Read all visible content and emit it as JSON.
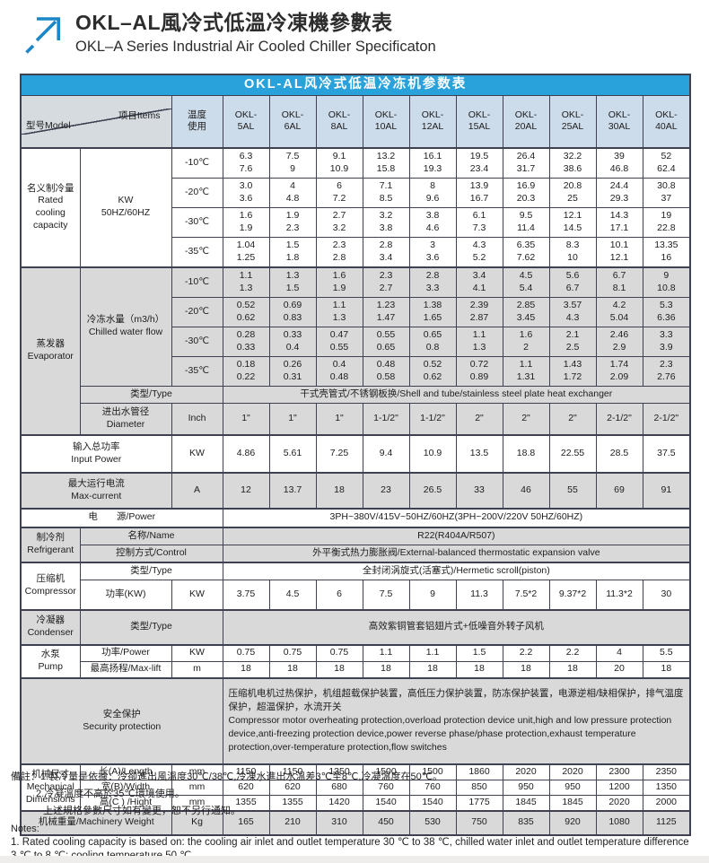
{
  "colors": {
    "caption_bar": "#29a1da",
    "header_row": "#cddcea",
    "gray_row": "#d9d9d9",
    "border": "#3e4152",
    "arrow_blue": "#1d86c8"
  },
  "header": {
    "title_zh": "OKL–AL風冷式低溫冷凍機參數表",
    "title_en": "OKL–A Series Industrial Air Cooled Chiller Specificaton"
  },
  "table": {
    "caption": "OKL-AL风冷式低温冷冻机参数表",
    "corner": {
      "model": "型号Model",
      "items": "项目Items"
    },
    "temp_header": "温度\n使用",
    "models": [
      "OKL-\n5AL",
      "OKL-\n6AL",
      "OKL-\n8AL",
      "OKL-\n10AL",
      "OKL-\n12AL",
      "OKL-\n15AL",
      "OKL-\n20AL",
      "OKL-\n25AL",
      "OKL-\n30AL",
      "OKL-\n40AL"
    ],
    "cooling": {
      "label": "名义制冷量\nRated\ncooling\ncapacity",
      "unit": "KW\n50HZ/60HZ",
      "rows": [
        {
          "temp": "-10℃",
          "values": [
            "6.3\n7.6",
            "7.5\n9",
            "9.1\n10.9",
            "13.2\n15.8",
            "16.1\n19.3",
            "19.5\n23.4",
            "26.4\n31.7",
            "32.2\n38.6",
            "39\n46.8",
            "52\n62.4"
          ]
        },
        {
          "temp": "-20℃",
          "values": [
            "3.0\n3.6",
            "4\n4.8",
            "6\n7.2",
            "7.1\n8.5",
            "8\n9.6",
            "13.9\n16.7",
            "16.9\n20.3",
            "20.8\n25",
            "24.4\n29.3",
            "30.8\n37"
          ]
        },
        {
          "temp": "-30℃",
          "values": [
            "1.6\n1.9",
            "1.9\n2.3",
            "2.7\n3.2",
            "3.2\n3.8",
            "3.8\n4.6",
            "6.1\n7.3",
            "9.5\n11.4",
            "12.1\n14.5",
            "14.3\n17.1",
            "19\n22.8"
          ]
        },
        {
          "temp": "-35℃",
          "values": [
            "1.04\n1.25",
            "1.5\n1.8",
            "2.3\n2.8",
            "2.8\n3.4",
            "3\n3.6",
            "4.3\n5.2",
            "6.35\n7.62",
            "8.3\n10",
            "10.1\n12.1",
            "13.35\n16"
          ]
        }
      ]
    },
    "evaporator": {
      "label": "蒸发器\nEvaporator",
      "flow_label": "冷冻水量（m3/h）\nChilled water flow",
      "rows": [
        {
          "temp": "-10℃",
          "values": [
            "1.1\n1.3",
            "1.3\n1.5",
            "1.6\n1.9",
            "2.3\n2.7",
            "2.8\n3.3",
            "3.4\n4.1",
            "4.5\n5.4",
            "5.6\n6.7",
            "6.7\n8.1",
            "9\n10.8"
          ]
        },
        {
          "temp": "-20℃",
          "values": [
            "0.52\n0.62",
            "0.69\n0.83",
            "1.1\n1.3",
            "1.23\n1.47",
            "1.38\n1.65",
            "2.39\n2.87",
            "2.85\n3.45",
            "3.57\n4.3",
            "4.2\n5.04",
            "5.3\n6.36"
          ]
        },
        {
          "temp": "-30℃",
          "values": [
            "0.28\n0.33",
            "0.33\n0.4",
            "0.47\n0.55",
            "0.55\n0.65",
            "0.65\n0.8",
            "1.1\n1.3",
            "1.6\n2",
            "2.1\n2.5",
            "2.46\n2.9",
            "3.3\n3.9"
          ]
        },
        {
          "temp": "-35℃",
          "values": [
            "0.18\n0.22",
            "0.26\n0.31",
            "0.4\n0.48",
            "0.48\n0.58",
            "0.52\n0.62",
            "0.72\n0.89",
            "1.1\n1.31",
            "1.43\n1.72",
            "1.74\n2.09",
            "2.3\n2.76"
          ]
        }
      ],
      "type_label": "类型/Type",
      "type_value": "干式壳管式/不锈钢板换/Shell and tube/stainless steel plate heat exchanger",
      "diameter_label": "进出水管径\nDiameter",
      "diameter_unit": "Inch",
      "diameter_values": [
        "1\"",
        "1\"",
        "1\"",
        "1-1/2\"",
        "1-1/2\"",
        "2\"",
        "2\"",
        "2\"",
        "2-1/2\"",
        "2-1/2\""
      ]
    },
    "input_power": {
      "label": "输入总功率\nInput Power",
      "unit": "KW",
      "values": [
        "4.86",
        "5.61",
        "7.25",
        "9.4",
        "10.9",
        "13.5",
        "18.8",
        "22.55",
        "28.5",
        "37.5"
      ]
    },
    "max_current": {
      "label": "最大运行电流\nMax-current",
      "unit": "A",
      "values": [
        "12",
        "13.7",
        "18",
        "23",
        "26.5",
        "33",
        "46",
        "55",
        "69",
        "91"
      ]
    },
    "power_supply": {
      "label": "电　　源/Power",
      "value": "3PH~380V/415V~50HZ/60HZ(3PH~200V/220V  50HZ/60HZ)"
    },
    "refrigerant": {
      "label": "制冷剂\nRefrigerant",
      "name_label": "名称/Name",
      "name_value": "R22(R404A/R507)",
      "control_label": "控制方式/Control",
      "control_value": "外平衡式热力膨胀阀/External-balanced thermostatic expansion valve"
    },
    "compressor": {
      "label": "压缩机\nCompressor",
      "type_label": "类型/Type",
      "type_value": "全封闭涡旋式(活塞式)/Hermetic scroll(piston)",
      "power_label": "功率(KW)",
      "power_unit": "KW",
      "power_values": [
        "3.75",
        "4.5",
        "6",
        "7.5",
        "9",
        "11.3",
        "7.5*2",
        "9.37*2",
        "11.3*2",
        "30"
      ]
    },
    "condenser": {
      "label": "冷凝器\nCondenser",
      "type_label": "类型/Type",
      "type_value": "高效紫铜管套铝翅片式+低噪音外转子风机"
    },
    "pump": {
      "label": "水泵\nPump",
      "power_label": "功率/Power",
      "power_unit": "KW",
      "power_values": [
        "0.75",
        "0.75",
        "0.75",
        "1.1",
        "1.1",
        "1.5",
        "2.2",
        "2.2",
        "4",
        "5.5"
      ],
      "lift_label": "最高扬程/Max-lift",
      "lift_unit": "m",
      "lift_values": [
        "18",
        "18",
        "18",
        "18",
        "18",
        "18",
        "18",
        "18",
        "20",
        "18"
      ]
    },
    "security": {
      "label": "安全保护\nSecurity protection",
      "value_zh": "压缩机电机过热保护，机组超载保护装置，高低压力保护装置，防冻保护装置，电源逆相/缺相保护，排气温度保护，超温保护，水流开关",
      "value_en": "Compressor motor overheating protection,overload protection device unit,high and low pressure protection device,anti-freezing protection device,power reverse phase/phase protection,exhaust temperature protection,over-temperature protection,flow switches"
    },
    "mechanical": {
      "label": "机械尺寸\nMechanical\nDimensions",
      "length_label": "长(A)/Length",
      "length_unit": "mm",
      "length_values": [
        "1150",
        "1150",
        "1350",
        "1500",
        "1500",
        "1860",
        "2020",
        "2020",
        "2300",
        "2350"
      ],
      "width_label": "宽(B)/Width",
      "width_unit": "mm",
      "width_values": [
        "620",
        "620",
        "680",
        "760",
        "760",
        "850",
        "950",
        "950",
        "1200",
        "1350"
      ],
      "height_label": "高(C ) /Hight",
      "height_unit": "mm",
      "height_values": [
        "1355",
        "1355",
        "1420",
        "1540",
        "1540",
        "1775",
        "1845",
        "1845",
        "2020",
        "2000"
      ]
    },
    "weight": {
      "label": "机械重量/Machinery Weight",
      "unit": "Kg",
      "values": [
        "165",
        "210",
        "310",
        "450",
        "530",
        "750",
        "835",
        "920",
        "1080",
        "1125"
      ]
    }
  },
  "notes": {
    "zh1": "備註：1.製冷量是依據：冷卻進出風溫度30℃/38℃,冷凍水進出水溫差3℃至8℃,冷凝溫度在50℃。",
    "zh2": "2.冷凝溫度不高於35℃環境使用。",
    "zh3": "上述規格參數尺寸如有變更，恕不另行通知。",
    "en_title": "Notes:",
    "en1": "1. Rated cooling capacity is based on: the cooling air inlet and outlet temperature 30 ℃ to 38 ℃, chilled water inlet and outlet temperature difference 3 ℃ to 8 ℃; cooling temperature 50 ℃."
  }
}
